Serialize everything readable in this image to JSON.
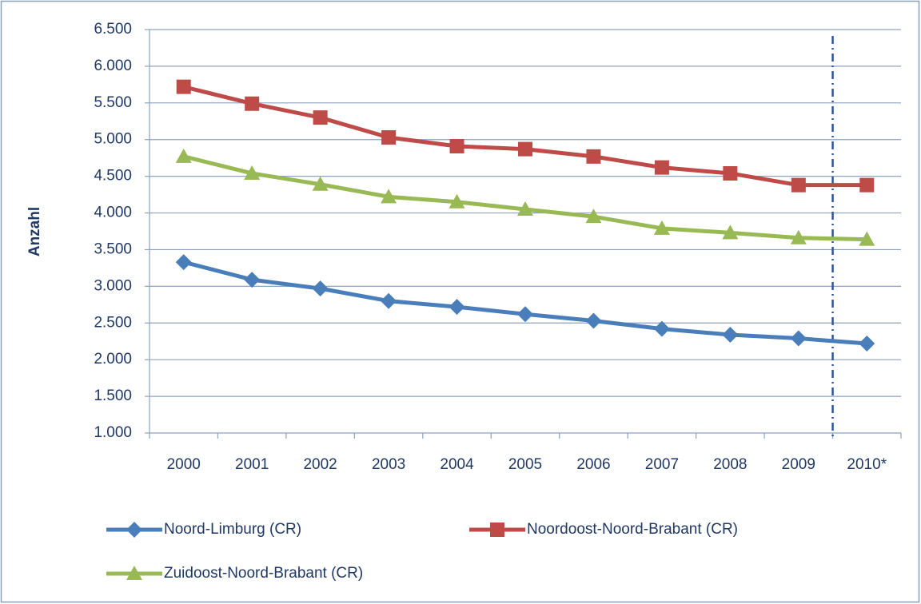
{
  "chart_data": {
    "type": "line",
    "y_label": "Anzahl",
    "categories": [
      "2000",
      "2001",
      "2002",
      "2003",
      "2004",
      "2005",
      "2006",
      "2007",
      "2008",
      "2009",
      "2010*"
    ],
    "series": [
      {
        "name": "Noord-Limburg (CR)",
        "color": "#4a7ebb",
        "marker": "diamond",
        "values": [
          3330,
          3090,
          2970,
          2800,
          2720,
          2620,
          2530,
          2420,
          2340,
          2290,
          2220
        ]
      },
      {
        "name": "Noordoost-Noord-Brabant (CR)",
        "color": "#be4b48",
        "marker": "square",
        "values": [
          5720,
          5490,
          5300,
          5030,
          4910,
          4870,
          4770,
          4620,
          4540,
          4380,
          4380
        ]
      },
      {
        "name": "Zuidoost-Noord-Brabant (CR)",
        "color": "#98b954",
        "marker": "triangle",
        "values": [
          4770,
          4540,
          4390,
          4220,
          4150,
          4050,
          3950,
          3790,
          3730,
          3660,
          3640
        ]
      }
    ],
    "ylim": [
      1000,
      6500
    ],
    "yticks": [
      {
        "value": 1000,
        "label": "1.000"
      },
      {
        "value": 1500,
        "label": "1.500"
      },
      {
        "value": 2000,
        "label": "2.000"
      },
      {
        "value": 2500,
        "label": "2.500"
      },
      {
        "value": 3000,
        "label": "3.000"
      },
      {
        "value": 3500,
        "label": "3.500"
      },
      {
        "value": 4000,
        "label": "4.000"
      },
      {
        "value": 4500,
        "label": "4.500"
      },
      {
        "value": 5000,
        "label": "5.000"
      },
      {
        "value": 5500,
        "label": "5.500"
      },
      {
        "value": 6000,
        "label": "6.000"
      },
      {
        "value": 6500,
        "label": "6.500"
      }
    ],
    "grid": true,
    "legend": "bottom"
  }
}
